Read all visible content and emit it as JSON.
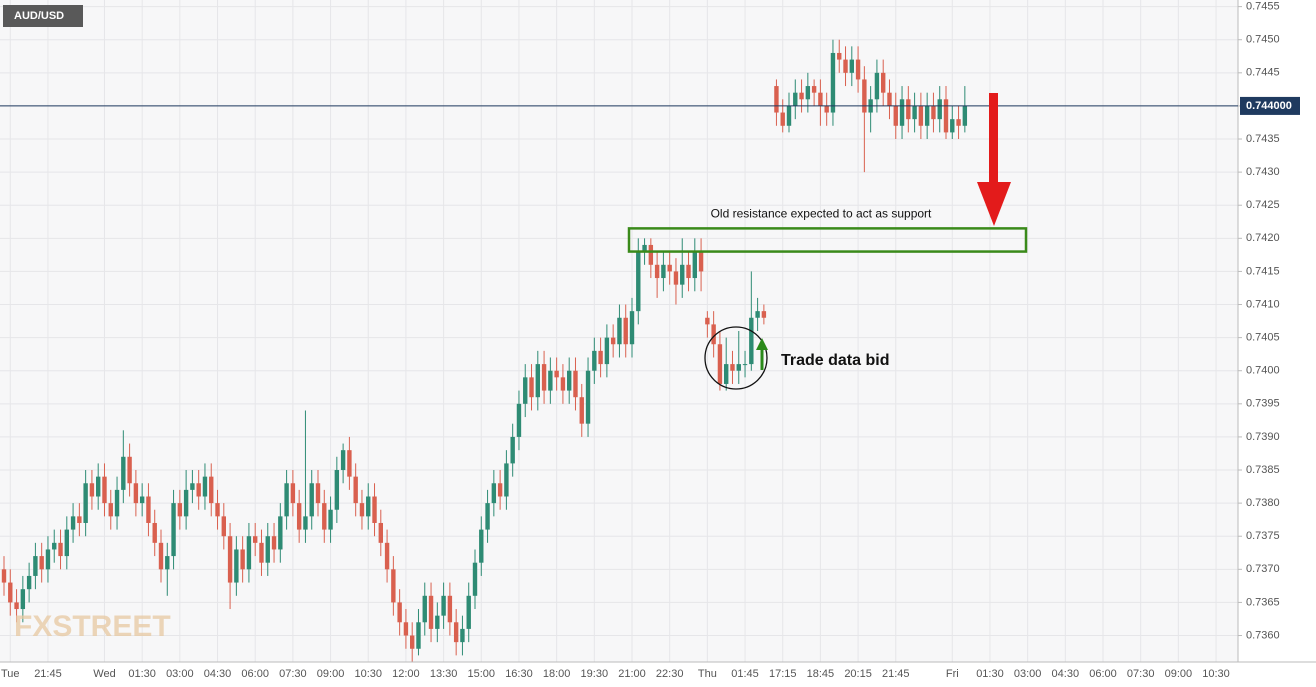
{
  "chart_data": {
    "type": "candlestick",
    "symbol": "AUD/USD",
    "watermark": "FXSTREET",
    "up_color": "#2e8b74",
    "down_color": "#d9604f",
    "grid": true,
    "categories": [
      null,
      "Tue",
      null,
      null,
      null,
      null,
      null,
      "21:45",
      null,
      null,
      null,
      null,
      null,
      null,
      null,
      null,
      "Wed",
      null,
      null,
      null,
      null,
      null,
      "01:30",
      null,
      null,
      null,
      null,
      null,
      "03:00",
      null,
      null,
      null,
      null,
      null,
      "04:30",
      null,
      null,
      null,
      null,
      null,
      "06:00",
      null,
      null,
      null,
      null,
      null,
      "07:30",
      null,
      null,
      null,
      null,
      null,
      "09:00",
      null,
      null,
      null,
      null,
      null,
      "10:30",
      null,
      null,
      null,
      null,
      null,
      "12:00",
      null,
      null,
      null,
      null,
      null,
      "13:30",
      null,
      null,
      null,
      null,
      null,
      "15:00",
      null,
      null,
      null,
      null,
      null,
      "16:30",
      null,
      null,
      null,
      null,
      null,
      "18:00",
      null,
      null,
      null,
      null,
      null,
      "19:30",
      null,
      null,
      null,
      null,
      null,
      "21:00",
      null,
      null,
      null,
      null,
      null,
      "22:30",
      null,
      null,
      null,
      null,
      null,
      "Thu",
      null,
      null,
      null,
      null,
      null,
      "01:45",
      null,
      null,
      null,
      null,
      null,
      "17:15",
      null,
      null,
      null,
      null,
      null,
      "18:45",
      null,
      null,
      null,
      null,
      null,
      "20:15",
      null,
      null,
      null,
      null,
      null,
      "21:45",
      null,
      null,
      null,
      null,
      null,
      null,
      null,
      null,
      "Fri",
      null,
      null,
      null,
      null,
      null,
      "01:30",
      null,
      null,
      null,
      null,
      null,
      "03:00",
      null,
      null,
      null,
      null,
      null,
      "04:30",
      null,
      null,
      null,
      null,
      null,
      "06:00",
      null,
      null,
      null,
      null,
      null,
      "07:30",
      null,
      null,
      null,
      null,
      null,
      "09:00",
      null,
      null,
      null,
      null,
      null,
      "10:30",
      null,
      null,
      null
    ],
    "open": [
      0.737,
      0.7368,
      0.7365,
      0.7364,
      0.7367,
      0.7369,
      0.7372,
      0.737,
      0.7373,
      0.7374,
      0.7372,
      0.7376,
      0.7378,
      0.7377,
      0.7383,
      0.7381,
      0.7384,
      0.738,
      0.7378,
      0.7382,
      0.7387,
      0.7383,
      0.738,
      0.7381,
      0.7377,
      0.7374,
      0.737,
      0.7372,
      0.738,
      0.7378,
      0.7382,
      0.7383,
      0.7381,
      0.7384,
      0.738,
      0.7378,
      0.7375,
      0.7368,
      0.7373,
      0.737,
      0.7375,
      0.7374,
      0.7371,
      0.7375,
      0.7373,
      0.7378,
      0.7383,
      0.738,
      0.7376,
      0.7378,
      0.7383,
      0.738,
      0.7376,
      0.7379,
      0.7385,
      0.7388,
      0.7384,
      0.738,
      0.7378,
      0.7381,
      0.7377,
      0.7374,
      0.737,
      0.7365,
      0.7362,
      0.736,
      0.7358,
      0.7362,
      0.7366,
      0.7361,
      0.7363,
      0.7366,
      0.7362,
      0.7359,
      0.7361,
      0.7366,
      0.7371,
      0.7376,
      0.738,
      0.7383,
      0.7381,
      0.7386,
      0.739,
      0.7395,
      0.7399,
      0.7396,
      0.7401,
      0.7397,
      0.74,
      0.7399,
      0.7397,
      0.74,
      0.7396,
      0.7392,
      0.74,
      0.7403,
      0.7401,
      0.7405,
      0.7404,
      0.7408,
      0.7404,
      0.7409,
      0.7418,
      0.7419,
      0.7416,
      0.7414,
      0.7416,
      0.7415,
      0.7413,
      0.7416,
      0.7414,
      0.7418,
      0.7408,
      0.7407,
      0.7404,
      0.7398,
      0.7401,
      0.74,
      0.7401,
      0.7401,
      0.7408,
      0.7409,
      null,
      0.7443,
      0.7439,
      0.7437,
      0.744,
      0.7442,
      0.7441,
      0.7443,
      0.7442,
      0.744,
      0.7439,
      0.7448,
      0.7447,
      0.7445,
      0.7447,
      0.7444,
      0.7439,
      0.7441,
      0.7445,
      0.7442,
      0.744,
      0.7437,
      0.7441,
      0.7438,
      0.744,
      0.7437,
      0.744,
      0.7438,
      0.7441,
      0.7436,
      0.7438,
      0.7437,
      null,
      null,
      null,
      null,
      null,
      null,
      null,
      null,
      null,
      null,
      null,
      null,
      null,
      null,
      null,
      null,
      null,
      null,
      null,
      null,
      null,
      null,
      null,
      null,
      null,
      null,
      null,
      null,
      null,
      null,
      null,
      null,
      null,
      null,
      null,
      null,
      null,
      null,
      null,
      null,
      null,
      null,
      null
    ],
    "high": [
      0.7372,
      0.737,
      0.7367,
      0.7369,
      0.7371,
      0.7374,
      0.7374,
      0.7375,
      0.7376,
      0.7376,
      0.7378,
      0.738,
      0.738,
      0.7385,
      0.7385,
      0.7386,
      0.7386,
      0.7382,
      0.7384,
      0.7391,
      0.7389,
      0.7385,
      0.7383,
      0.7383,
      0.7379,
      0.7376,
      0.7374,
      0.7382,
      0.7382,
      0.7385,
      0.7385,
      0.7385,
      0.7386,
      0.7386,
      0.7382,
      0.738,
      0.7377,
      0.7375,
      0.7375,
      0.7377,
      0.7377,
      0.7376,
      0.7377,
      0.7377,
      0.738,
      0.7385,
      0.7385,
      0.7382,
      0.7394,
      0.7385,
      0.7385,
      0.7382,
      0.7381,
      0.7387,
      0.7389,
      0.739,
      0.7386,
      0.7382,
      0.7383,
      0.7383,
      0.7379,
      0.7376,
      0.7372,
      0.7367,
      0.7364,
      0.7362,
      0.7364,
      0.7368,
      0.7368,
      0.7365,
      0.7368,
      0.7368,
      0.7364,
      0.7363,
      0.7368,
      0.7373,
      0.7378,
      0.7382,
      0.7385,
      0.7385,
      0.7388,
      0.7392,
      0.7397,
      0.7401,
      0.7401,
      0.7403,
      0.7403,
      0.7402,
      0.7402,
      0.7401,
      0.7402,
      0.7402,
      0.7398,
      0.7402,
      0.7405,
      0.7405,
      0.7407,
      0.7407,
      0.741,
      0.741,
      0.7411,
      0.742,
      0.742,
      0.742,
      0.7418,
      0.7418,
      0.7418,
      0.7417,
      0.742,
      0.7418,
      0.742,
      0.742,
      0.7409,
      0.7409,
      0.7406,
      0.7405,
      0.7403,
      0.7406,
      0.7403,
      0.7415,
      0.7411,
      0.741,
      null,
      0.7444,
      0.7441,
      0.7442,
      0.7444,
      0.7444,
      0.7445,
      0.7444,
      0.7444,
      0.7442,
      0.745,
      0.745,
      0.7449,
      0.7449,
      0.7449,
      0.7446,
      0.7443,
      0.7447,
      0.7447,
      0.7444,
      0.7442,
      0.7443,
      0.7443,
      0.7442,
      0.7442,
      0.7442,
      0.7442,
      0.7443,
      0.7443,
      0.744,
      0.744,
      0.7443,
      null,
      null,
      null,
      null,
      null,
      null,
      null,
      null,
      null,
      null,
      null,
      null,
      null,
      null,
      null,
      null,
      null,
      null,
      null,
      null,
      null,
      null,
      null,
      null,
      null,
      null,
      null,
      null,
      null,
      null,
      null,
      null,
      null,
      null,
      null,
      null,
      null,
      null,
      null,
      null,
      null,
      null,
      null
    ],
    "low": [
      0.7366,
      0.7363,
      0.7362,
      0.7362,
      0.7365,
      0.7367,
      0.7368,
      0.7368,
      0.7371,
      0.737,
      0.737,
      0.7374,
      0.7375,
      0.7375,
      0.7379,
      0.7379,
      0.7378,
      0.7376,
      0.7376,
      0.738,
      0.7381,
      0.7378,
      0.7378,
      0.7375,
      0.7372,
      0.7368,
      0.7366,
      0.737,
      0.7376,
      0.7376,
      0.738,
      0.7379,
      0.7379,
      0.7378,
      0.7376,
      0.7373,
      0.7364,
      0.7366,
      0.7368,
      0.7368,
      0.7372,
      0.7369,
      0.7369,
      0.7371,
      0.7371,
      0.7376,
      0.7378,
      0.7374,
      0.7374,
      0.7376,
      0.7378,
      0.7374,
      0.7374,
      0.7377,
      0.7383,
      0.7382,
      0.7378,
      0.7376,
      0.7376,
      0.7375,
      0.7372,
      0.7368,
      0.7363,
      0.736,
      0.7358,
      0.7356,
      0.7357,
      0.736,
      0.7359,
      0.7359,
      0.7361,
      0.736,
      0.7357,
      0.7357,
      0.7359,
      0.7364,
      0.7369,
      0.7374,
      0.7378,
      0.7379,
      0.7379,
      0.7384,
      0.7388,
      0.7393,
      0.7394,
      0.7394,
      0.7395,
      0.7395,
      0.7397,
      0.7395,
      0.7395,
      0.7394,
      0.739,
      0.739,
      0.7398,
      0.7399,
      0.7399,
      0.7402,
      0.7402,
      0.7402,
      0.7402,
      0.7407,
      0.7416,
      0.7414,
      0.7411,
      0.7412,
      0.7413,
      0.741,
      0.7411,
      0.7412,
      0.7412,
      0.7412,
      0.7405,
      0.7402,
      0.7397,
      0.7397,
      0.7398,
      0.7398,
      0.7399,
      0.74,
      0.7406,
      0.7407,
      null,
      0.7437,
      0.7436,
      0.7436,
      0.7438,
      0.7439,
      0.7439,
      0.744,
      0.7437,
      0.7437,
      0.7437,
      0.7445,
      0.7443,
      0.7443,
      0.7442,
      0.743,
      0.7436,
      0.7439,
      0.744,
      0.7438,
      0.7435,
      0.7435,
      0.7436,
      0.7436,
      0.7435,
      0.7435,
      0.7436,
      0.7436,
      0.7435,
      0.7435,
      0.7435,
      0.7436,
      null,
      null,
      null,
      null,
      null,
      null,
      null,
      null,
      null,
      null,
      null,
      null,
      null,
      null,
      null,
      null,
      null,
      null,
      null,
      null,
      null,
      null,
      null,
      null,
      null,
      null,
      null,
      null,
      null,
      null,
      null,
      null,
      null,
      null,
      null,
      null,
      null,
      null,
      null,
      null,
      null,
      null,
      null
    ],
    "close": [
      0.7368,
      0.7365,
      0.7364,
      0.7367,
      0.7369,
      0.7372,
      0.737,
      0.7373,
      0.7374,
      0.7372,
      0.7376,
      0.7378,
      0.7377,
      0.7383,
      0.7381,
      0.7384,
      0.738,
      0.7378,
      0.7382,
      0.7387,
      0.7383,
      0.738,
      0.7381,
      0.7377,
      0.7374,
      0.737,
      0.7372,
      0.738,
      0.7378,
      0.7382,
      0.7383,
      0.7381,
      0.7384,
      0.738,
      0.7378,
      0.7375,
      0.7368,
      0.7373,
      0.737,
      0.7375,
      0.7374,
      0.7371,
      0.7375,
      0.7373,
      0.7378,
      0.7383,
      0.738,
      0.7376,
      0.7378,
      0.7383,
      0.738,
      0.7376,
      0.7379,
      0.7385,
      0.7388,
      0.7384,
      0.738,
      0.7378,
      0.7381,
      0.7377,
      0.7374,
      0.737,
      0.7365,
      0.7362,
      0.736,
      0.7358,
      0.7362,
      0.7366,
      0.7361,
      0.7363,
      0.7366,
      0.7362,
      0.7359,
      0.7361,
      0.7366,
      0.7371,
      0.7376,
      0.738,
      0.7383,
      0.7381,
      0.7386,
      0.739,
      0.7395,
      0.7399,
      0.7396,
      0.7401,
      0.7397,
      0.74,
      0.7399,
      0.7397,
      0.74,
      0.7396,
      0.7392,
      0.74,
      0.7403,
      0.7401,
      0.7405,
      0.7404,
      0.7408,
      0.7404,
      0.7409,
      0.7418,
      0.7419,
      0.7416,
      0.7414,
      0.7416,
      0.7415,
      0.7413,
      0.7416,
      0.7414,
      0.7418,
      0.7415,
      0.7407,
      0.7404,
      0.7398,
      0.7401,
      0.74,
      0.7401,
      0.7401,
      0.7408,
      0.7409,
      0.7408,
      null,
      0.7439,
      0.7437,
      0.744,
      0.7442,
      0.7441,
      0.7443,
      0.7442,
      0.744,
      0.7439,
      0.7448,
      0.7447,
      0.7445,
      0.7447,
      0.7444,
      0.7439,
      0.7441,
      0.7445,
      0.7442,
      0.744,
      0.7437,
      0.7441,
      0.7438,
      0.744,
      0.7437,
      0.744,
      0.7438,
      0.7441,
      0.7436,
      0.7438,
      0.7437,
      0.744,
      null,
      null,
      null,
      null,
      null,
      null,
      null,
      null,
      null,
      null,
      null,
      null,
      null,
      null,
      null,
      null,
      null,
      null,
      null,
      null,
      null,
      null,
      null,
      null,
      null,
      null,
      null,
      null,
      null,
      null,
      null,
      null,
      null,
      null,
      null,
      null,
      null,
      null,
      null,
      null,
      null,
      null,
      null
    ],
    "ylim": [
      0.7356,
      0.7456
    ],
    "yticks": [
      {
        "value": 0.736,
        "label": "0.7360"
      },
      {
        "value": 0.7365,
        "label": "0.7365"
      },
      {
        "value": 0.737,
        "label": "0.7370"
      },
      {
        "value": 0.7375,
        "label": "0.7375"
      },
      {
        "value": 0.738,
        "label": "0.7380"
      },
      {
        "value": 0.7385,
        "label": "0.7385"
      },
      {
        "value": 0.739,
        "label": "0.7390"
      },
      {
        "value": 0.7395,
        "label": "0.7395"
      },
      {
        "value": 0.74,
        "label": "0.7400"
      },
      {
        "value": 0.7405,
        "label": "0.7405"
      },
      {
        "value": 0.741,
        "label": "0.7410"
      },
      {
        "value": 0.7415,
        "label": "0.7415"
      },
      {
        "value": 0.742,
        "label": "0.7420"
      },
      {
        "value": 0.7425,
        "label": "0.7425"
      },
      {
        "value": 0.743,
        "label": "0.7430"
      },
      {
        "value": 0.7435,
        "label": "0.7435"
      },
      {
        "value": 0.744,
        "label": "0.7440"
      },
      {
        "value": 0.7445,
        "label": "0.7445"
      },
      {
        "value": 0.745,
        "label": "0.7450"
      },
      {
        "value": 0.7455,
        "label": "0.7455"
      }
    ],
    "price_line": {
      "value": 0.744,
      "label": "0.744000",
      "color": "#1f3a5f"
    },
    "zone": {
      "text": "Old resistance expected to act as support",
      "range": [
        0.7418,
        0.74215
      ],
      "color": "#3a8a1a"
    },
    "callout": "Trade data bid"
  }
}
